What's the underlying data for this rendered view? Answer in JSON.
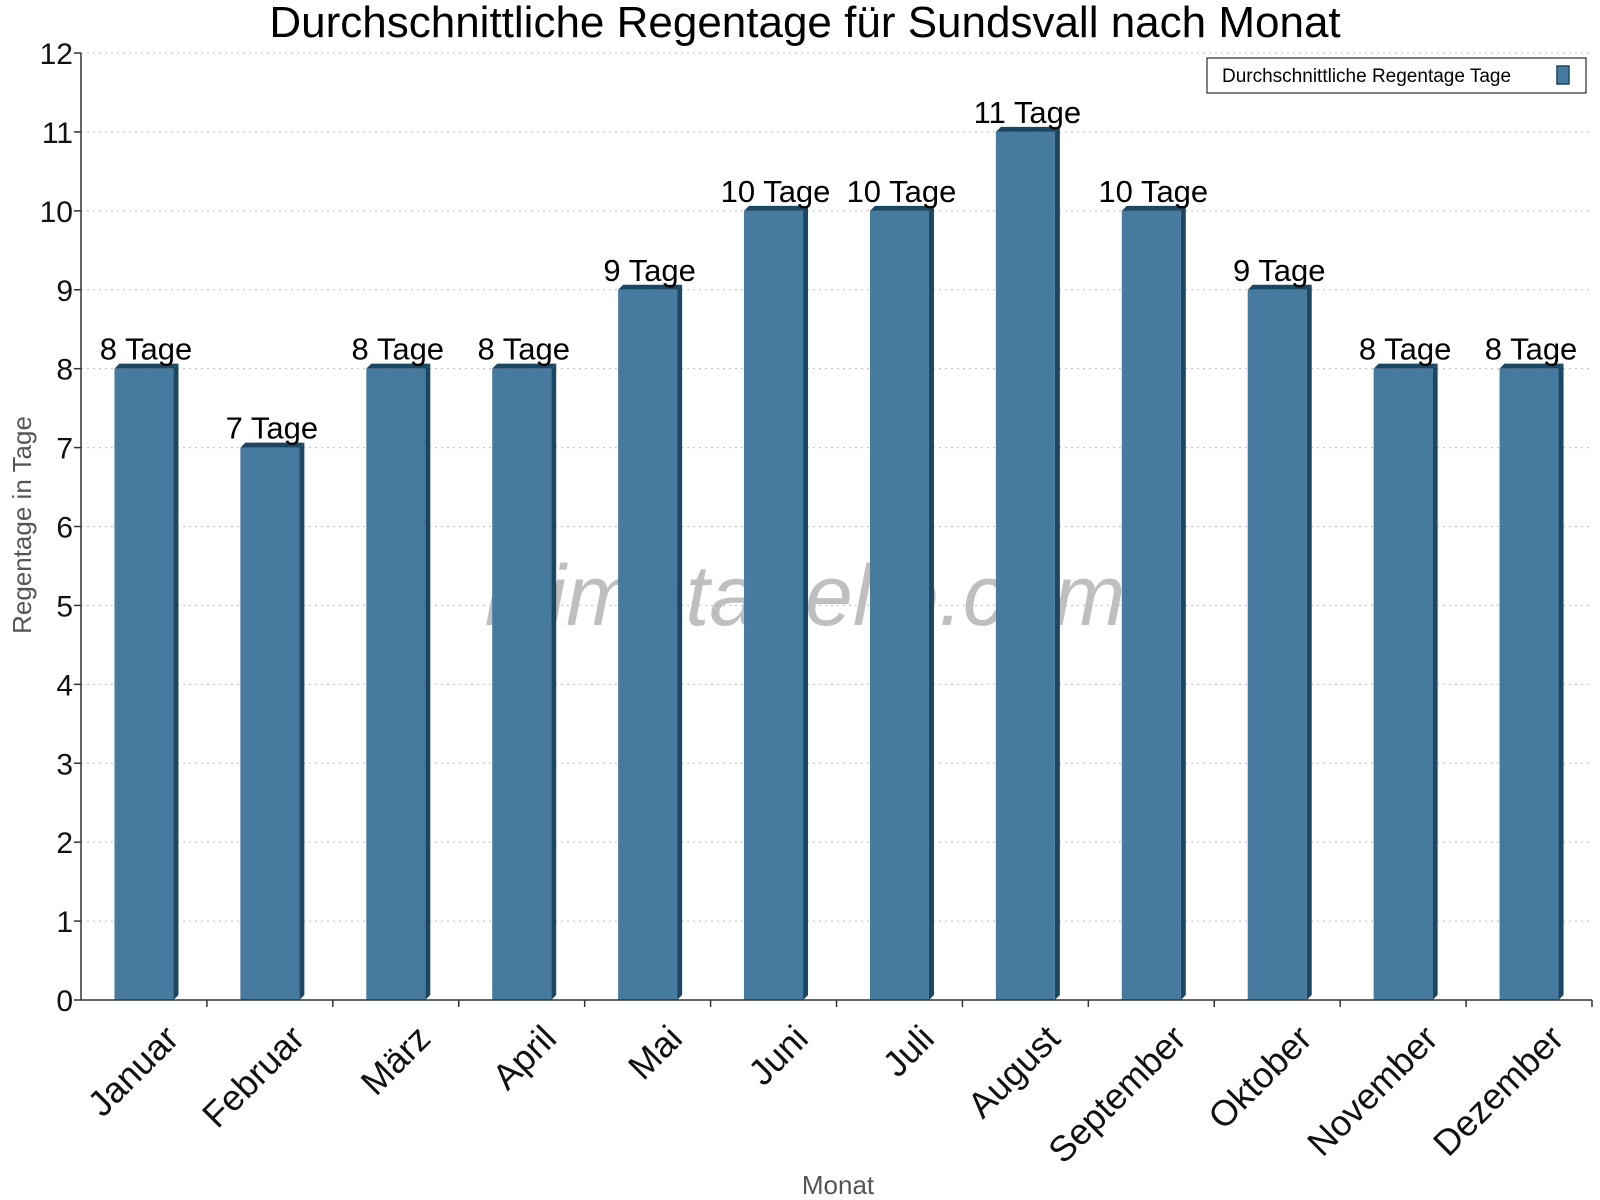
{
  "chart_data": {
    "type": "bar",
    "title": "Durchschnittliche Regentage für Sundsvall nach Monat",
    "xlabel": "Monat",
    "ylabel": "Regentage in Tage",
    "ylim": [
      0,
      12
    ],
    "yticks": [
      0,
      1,
      2,
      3,
      4,
      5,
      6,
      7,
      8,
      9,
      10,
      11,
      12
    ],
    "grid": true,
    "legend_position": "top-right",
    "categories": [
      "Januar",
      "Februar",
      "März",
      "April",
      "Mai",
      "Juni",
      "Juli",
      "August",
      "September",
      "Oktober",
      "November",
      "Dezember"
    ],
    "series": [
      {
        "name": "Durchschnittliche Regentage Tage",
        "color": "#467a9e",
        "values": [
          8,
          7,
          8,
          8,
          9,
          10,
          10,
          11,
          10,
          9,
          8,
          8
        ],
        "labels": [
          "8 Tage",
          "7 Tage",
          "8 Tage",
          "8 Tage",
          "9 Tage",
          "10 Tage",
          "10 Tage",
          "11 Tage",
          "10 Tage",
          "9 Tage",
          "8 Tage",
          "8 Tage"
        ]
      }
    ],
    "watermark": "klimatabelle.com"
  }
}
